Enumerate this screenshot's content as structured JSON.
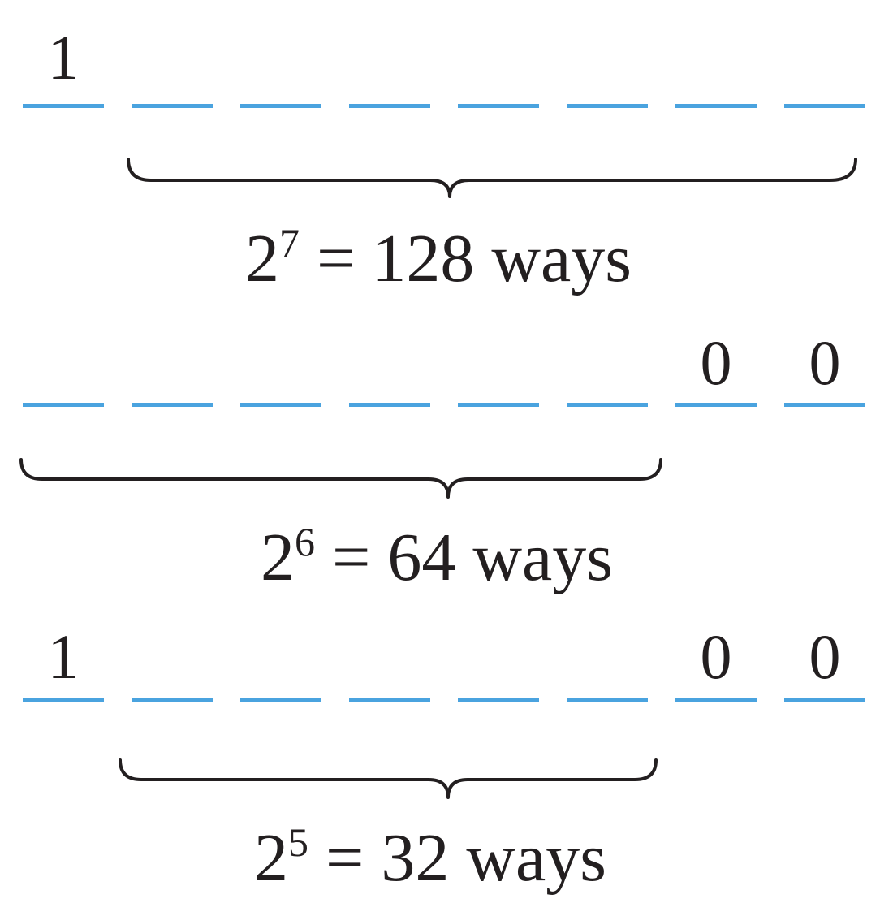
{
  "rows": [
    {
      "digits": [
        "1",
        "",
        "",
        "",
        "",
        "",
        "",
        ""
      ],
      "brace_from": 1,
      "brace_to": 7,
      "label": {
        "base": "2",
        "exp": "7",
        "rest": " = 128 ways"
      }
    },
    {
      "digits": [
        "",
        "",
        "",
        "",
        "",
        "",
        "0",
        "0"
      ],
      "brace_from": 0,
      "brace_to": 5,
      "label": {
        "base": "2",
        "exp": "6",
        "rest": " = 64 ways"
      }
    },
    {
      "digits": [
        "1",
        "",
        "",
        "",
        "",
        "",
        "0",
        "0"
      ],
      "brace_from": 1,
      "brace_to": 5,
      "label": {
        "base": "2",
        "exp": "5",
        "rest": " = 32 ways"
      }
    }
  ],
  "colors": {
    "slot": "#4aa3df",
    "text": "#231f20"
  }
}
